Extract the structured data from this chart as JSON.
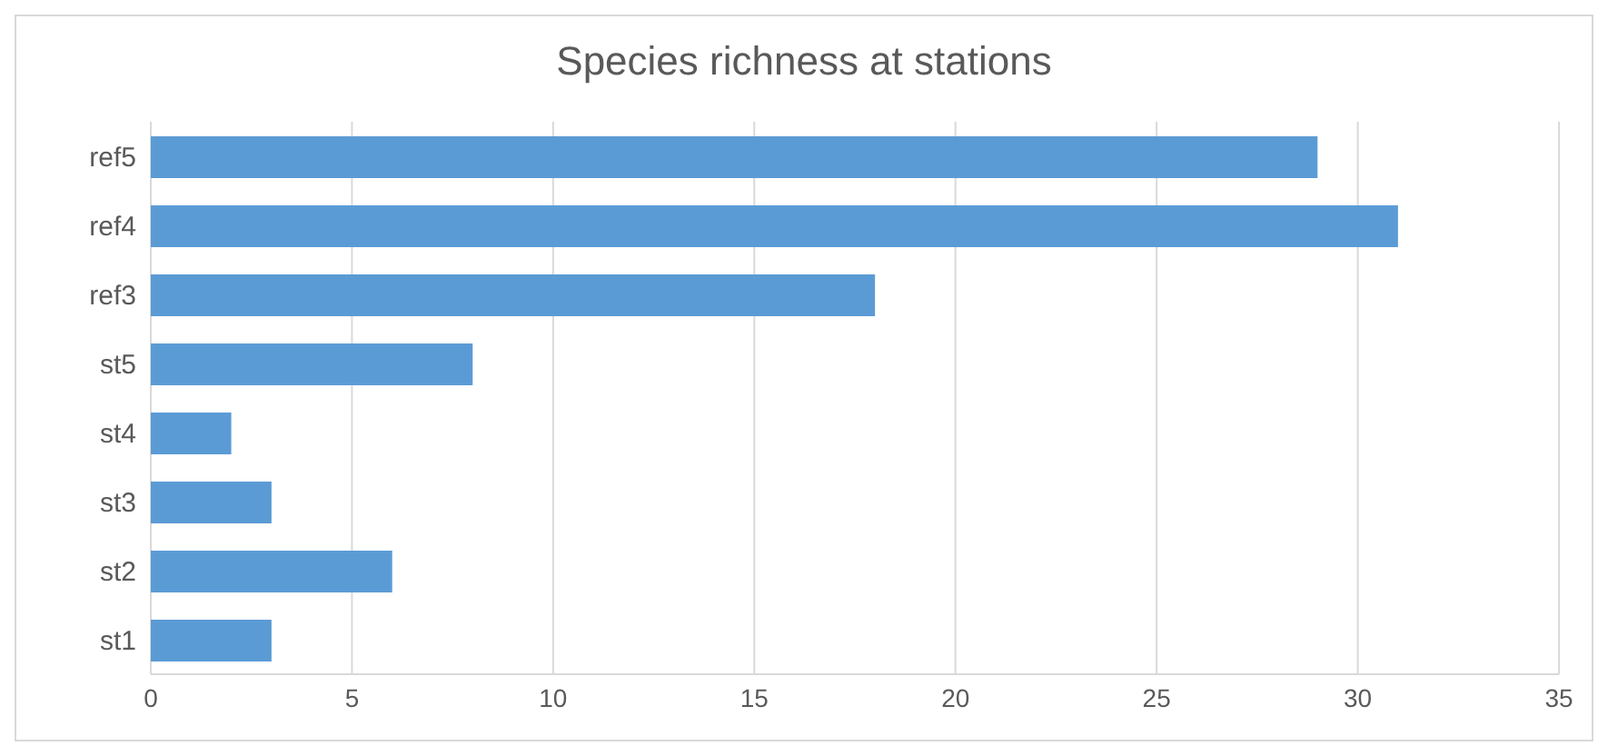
{
  "chart_data": {
    "type": "bar",
    "orientation": "horizontal",
    "title": "Species richness at stations",
    "categories": [
      "ref5",
      "ref4",
      "ref3",
      "st5",
      "st4",
      "st3",
      "st2",
      "st1"
    ],
    "values": [
      29,
      31,
      18,
      8,
      2,
      3,
      6,
      3
    ],
    "color": "#5b9bd5",
    "xlim": [
      0,
      35
    ],
    "xticks": [
      0,
      5,
      10,
      15,
      20,
      25,
      30,
      35
    ],
    "grid": "x"
  }
}
